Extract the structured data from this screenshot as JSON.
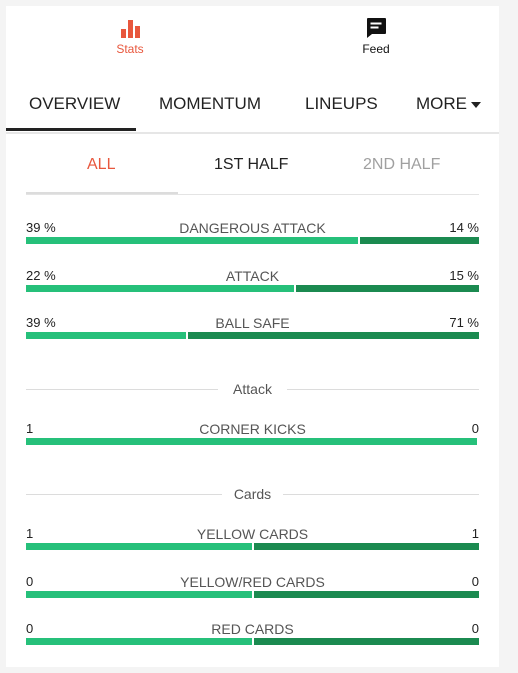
{
  "topbar": {
    "stats_label": "Stats",
    "feed_label": "Feed",
    "active_color": "#e8573d"
  },
  "tabs": [
    {
      "label": "OVERVIEW",
      "active": true
    },
    {
      "label": "MOMENTUM",
      "active": false
    },
    {
      "label": "LINEUPS",
      "active": false
    },
    {
      "label": "MORE",
      "active": false
    }
  ],
  "subtabs": [
    {
      "label": "ALL",
      "active": true,
      "color": "#e8573d"
    },
    {
      "label": "1ST HALF",
      "active": false,
      "color": "#222222"
    },
    {
      "label": "2ND HALF",
      "active": false,
      "color": "#a0a0a0"
    }
  ],
  "percent_stats": [
    {
      "name": "DANGEROUS ATTACK",
      "home": "39 %",
      "away": "14 %",
      "home_value": 39,
      "away_value": 14
    },
    {
      "name": "ATTACK",
      "home": "22 %",
      "away": "15 %",
      "home_value": 22,
      "away_value": 15
    },
    {
      "name": "BALL SAFE",
      "home": "39 %",
      "away": "71 %",
      "home_value": 39,
      "away_value": 71
    }
  ],
  "sections": {
    "attack_title": "Attack",
    "cards_title": "Cards"
  },
  "attack_stats": [
    {
      "name": "CORNER KICKS",
      "home": "1",
      "away": "0",
      "home_value": 1,
      "away_value": 0
    }
  ],
  "card_stats": [
    {
      "name": "YELLOW CARDS",
      "home": "1",
      "away": "1",
      "home_value": 1,
      "away_value": 1
    },
    {
      "name": "YELLOW/RED CARDS",
      "home": "0",
      "away": "0",
      "home_value": 0,
      "away_value": 0
    },
    {
      "name": "RED CARDS",
      "home": "0",
      "away": "0",
      "home_value": 0,
      "away_value": 0
    }
  ],
  "colors": {
    "home_bar": "#26c07a",
    "away_bar": "#1b8a50"
  }
}
